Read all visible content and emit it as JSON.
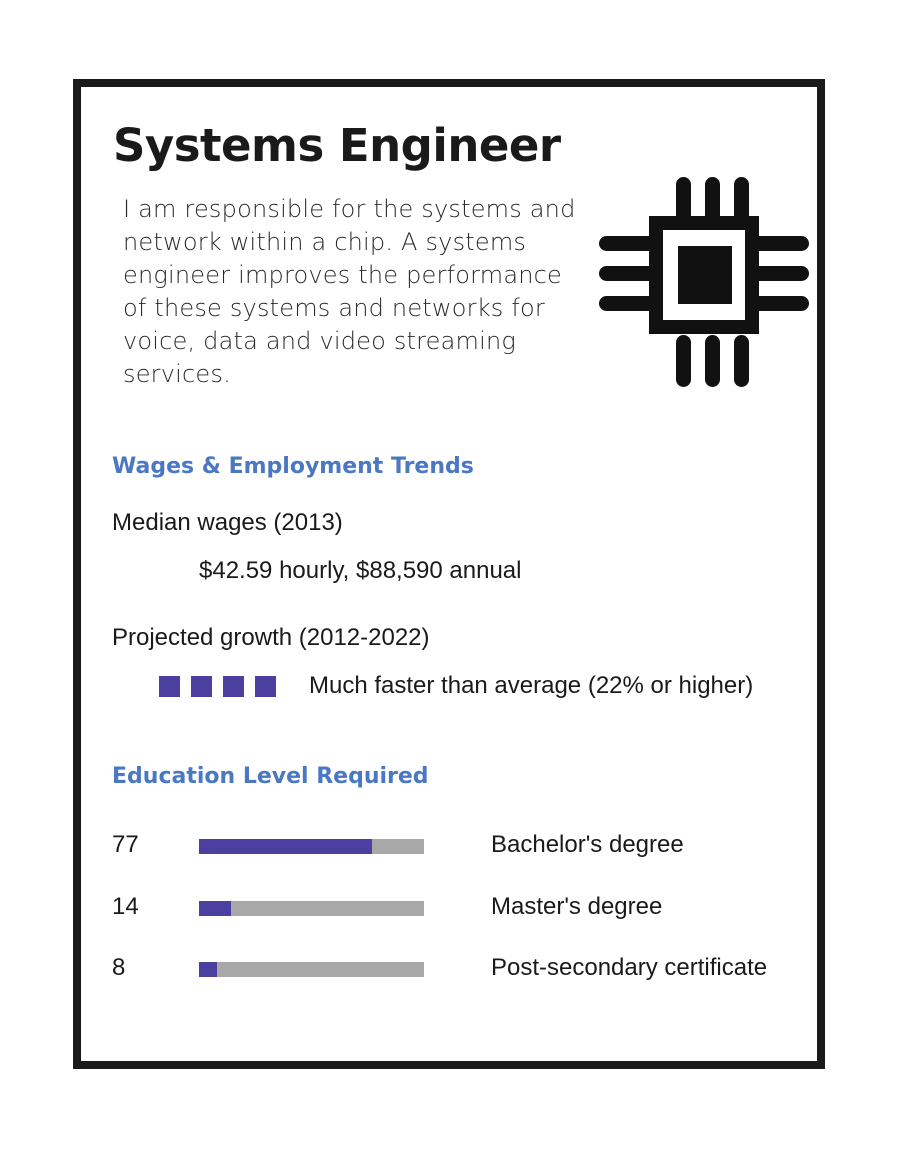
{
  "title": "Systems Engineer",
  "description": "I am responsible for the systems and network within a chip.  A systems engineer improves the performance of these systems and networks for voice, data and video streaming services.",
  "icon": "microchip-icon",
  "wages_section": {
    "heading": "Wages &  Employment Trends",
    "median_label": "Median wages (2013)",
    "median_value": "$42.59 hourly, $88,590 annual",
    "growth_label": "Projected growth (2012-2022)",
    "growth_squares": 4,
    "growth_value": "Much faster than average (22% or higher)"
  },
  "education_section": {
    "heading": "Education Level Required",
    "rows": [
      {
        "percent": "77",
        "fraction": 0.77,
        "label": "Bachelor's degree"
      },
      {
        "percent": "14",
        "fraction": 0.14,
        "label": "Master's degree"
      },
      {
        "percent": "8",
        "fraction": 0.08,
        "label": "Post-secondary certificate"
      }
    ]
  },
  "colors": {
    "heading_blue": "#4a78c2",
    "bar_fill": "#4b3fa0",
    "bar_track": "#a8a8a8",
    "border": "#1a1a1a"
  }
}
